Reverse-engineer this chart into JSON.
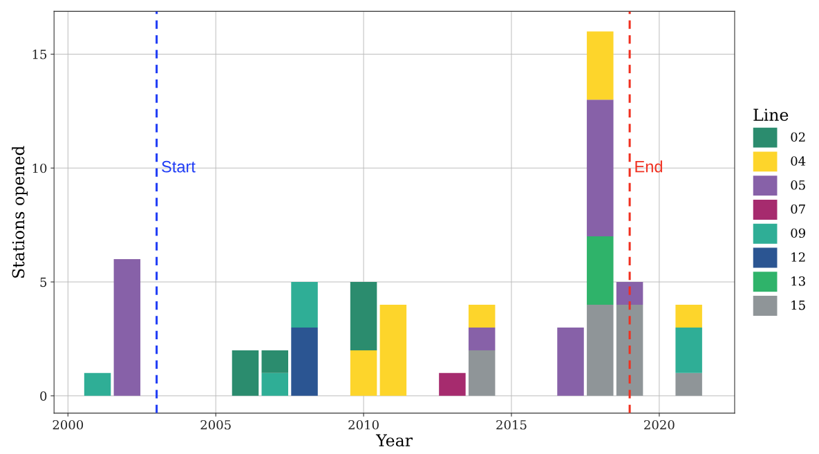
{
  "chart_data": {
    "type": "bar",
    "stacked": true,
    "xlabel": "Year",
    "ylabel": "Stations opened",
    "legend_title": "Line",
    "legend": "right",
    "x": [
      2001,
      2002,
      2006,
      2007,
      2008,
      2010,
      2011,
      2013,
      2014,
      2017,
      2018,
      2019,
      2021
    ],
    "series": [
      {
        "name": "15",
        "color": "#8f9598",
        "values": [
          0,
          0,
          0,
          0,
          0,
          0,
          0,
          0,
          2,
          0,
          4,
          4,
          1
        ]
      },
      {
        "name": "13",
        "color": "#2fb36a",
        "values": [
          0,
          0,
          0,
          0,
          0,
          0,
          0,
          0,
          0,
          0,
          3,
          0,
          0
        ]
      },
      {
        "name": "12",
        "color": "#2b5592",
        "values": [
          0,
          0,
          0,
          0,
          3,
          0,
          0,
          0,
          0,
          0,
          0,
          0,
          0
        ]
      },
      {
        "name": "09",
        "color": "#2fae96",
        "values": [
          1,
          0,
          0,
          1,
          2,
          0,
          0,
          0,
          0,
          0,
          0,
          0,
          2
        ]
      },
      {
        "name": "07",
        "color": "#a62b6e",
        "values": [
          0,
          0,
          0,
          0,
          0,
          0,
          0,
          1,
          0,
          0,
          0,
          0,
          0
        ]
      },
      {
        "name": "05",
        "color": "#8761a8",
        "values": [
          0,
          6,
          0,
          0,
          0,
          0,
          0,
          0,
          1,
          3,
          6,
          1,
          0
        ]
      },
      {
        "name": "04",
        "color": "#fdd52b",
        "values": [
          0,
          0,
          0,
          0,
          0,
          2,
          4,
          0,
          1,
          0,
          3,
          0,
          1
        ]
      },
      {
        "name": "02",
        "color": "#2b8c6e",
        "values": [
          0,
          0,
          2,
          1,
          0,
          3,
          0,
          0,
          0,
          0,
          0,
          0,
          0
        ]
      }
    ],
    "xlim": [
      1999.53,
      2022.55
    ],
    "xticks": [
      2000,
      2005,
      2010,
      2015,
      2020
    ],
    "ylim": [
      -0.76,
      16.88
    ],
    "yticks": [
      0,
      5,
      10,
      15
    ],
    "grid": true,
    "ref_lines": [
      {
        "axis": "x",
        "value": 2003,
        "label": "Start",
        "color": "#1f3cf5",
        "line_style": "dashed"
      },
      {
        "axis": "x",
        "value": 2019,
        "label": "End",
        "color": "#f03020",
        "line_style": "dashed"
      }
    ]
  }
}
